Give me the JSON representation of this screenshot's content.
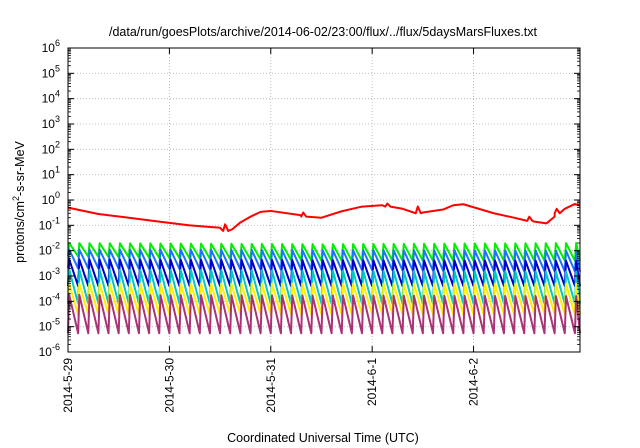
{
  "chart_data": {
    "type": "line",
    "title": "/data/run/goesPlots/archive/2014-06-02/23:00/flux/../flux/5daysMarsFluxes.txt",
    "xlabel": "Coordinated Universal Time (UTC)",
    "ylabel_parts": {
      "pre": "protons/cm",
      "sup": "2",
      "post": "-s-sr-MeV"
    },
    "x_ticks": [
      "2014-5-29",
      "2014-5-30",
      "2014-5-31",
      "2014-6-1",
      "2014-6-2"
    ],
    "x_range_days": [
      0,
      5.05
    ],
    "y_scale": "log",
    "y_exp_range": [
      -6,
      6
    ],
    "y_tick_exps": [
      -6,
      -5,
      -4,
      -3,
      -2,
      -1,
      0,
      1,
      2,
      3,
      4,
      5,
      6
    ],
    "grid": true,
    "series": [
      {
        "color": "#ff0000",
        "shape": "smooth",
        "anchors": [
          [
            0,
            0.5
          ],
          [
            0.3,
            0.28
          ],
          [
            0.6,
            0.2
          ],
          [
            0.9,
            0.14
          ],
          [
            1.2,
            0.1
          ],
          [
            1.5,
            0.08
          ],
          [
            1.62,
            0.07
          ],
          [
            1.7,
            0.13
          ],
          [
            1.8,
            0.22
          ],
          [
            1.9,
            0.34
          ],
          [
            2.0,
            0.37
          ],
          [
            2.3,
            0.25
          ],
          [
            2.5,
            0.2
          ],
          [
            2.7,
            0.36
          ],
          [
            2.9,
            0.55
          ],
          [
            3.1,
            0.62
          ],
          [
            3.3,
            0.45
          ],
          [
            3.5,
            0.32
          ],
          [
            3.7,
            0.42
          ],
          [
            3.8,
            0.62
          ],
          [
            3.9,
            0.68
          ],
          [
            4.2,
            0.3
          ],
          [
            4.4,
            0.2
          ],
          [
            4.6,
            0.14
          ],
          [
            4.72,
            0.12
          ],
          [
            4.8,
            0.22
          ],
          [
            4.9,
            0.45
          ],
          [
            5.0,
            0.7
          ],
          [
            5.05,
            0.6
          ]
        ],
        "pulses": [
          [
            1.55,
            0.06,
            0.11
          ],
          [
            2.32,
            0.22,
            0.32
          ],
          [
            3.15,
            0.55,
            0.72
          ],
          [
            3.45,
            0.3,
            0.55
          ],
          [
            4.55,
            0.15,
            0.22
          ],
          [
            4.82,
            0.3,
            0.45
          ]
        ]
      },
      {
        "color": "#00ee00",
        "shape": "sawtooth",
        "period": 0.1,
        "lo": [
          [
            0,
            0.006
          ],
          [
            2.5,
            0.004
          ],
          [
            5.05,
            0.004
          ]
        ],
        "hi": [
          [
            0,
            0.02
          ],
          [
            2.5,
            0.018
          ],
          [
            5.05,
            0.02
          ]
        ]
      },
      {
        "color": "#1a74ff",
        "shape": "sawtooth",
        "period": 0.1,
        "lo": [
          [
            0,
            0.002
          ],
          [
            5.05,
            0.0015
          ]
        ],
        "hi": [
          [
            0,
            0.011
          ],
          [
            5.05,
            0.01
          ]
        ]
      },
      {
        "color": "#0000c8",
        "shape": "sawtooth",
        "period": 0.1,
        "lo": [
          [
            0,
            0.0004
          ],
          [
            5.05,
            0.0004
          ]
        ],
        "hi": [
          [
            0,
            0.0045
          ],
          [
            5.05,
            0.004
          ]
        ]
      },
      {
        "color": "#00c8c8",
        "shape": "sawtooth",
        "period": 0.1,
        "lo": [
          [
            0,
            8e-05
          ],
          [
            5.05,
            8e-05
          ]
        ],
        "hi": [
          [
            0,
            0.0018
          ],
          [
            5.05,
            0.0015
          ]
        ]
      },
      {
        "color": "#ffee00",
        "shape": "sawtooth",
        "period": 0.1,
        "lo": [
          [
            0,
            3e-05
          ],
          [
            5.05,
            3e-05
          ]
        ],
        "hi": [
          [
            0,
            0.0005
          ],
          [
            5.05,
            0.0005
          ]
        ]
      },
      {
        "color": "#aa3377",
        "shape": "sawtooth",
        "period": 0.1,
        "lo": [
          [
            0,
            5.5e-06
          ],
          [
            5.05,
            5.5e-06
          ]
        ],
        "hi": [
          [
            0,
            0.00018
          ],
          [
            5.05,
            0.00016
          ]
        ]
      }
    ]
  }
}
